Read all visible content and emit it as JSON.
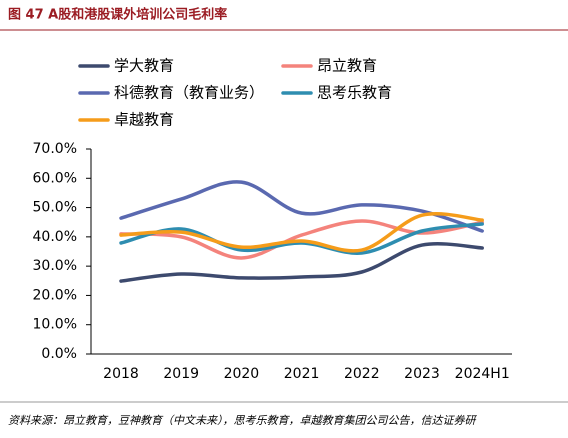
{
  "chart_data": {
    "type": "line",
    "title": "图 47  A股和港股课外培训公司毛利率",
    "source": "资料来源：昂立教育，豆神教育（中文未来），思考乐教育，卓越教育集团公司公告，信达证券研",
    "categories": [
      "2018",
      "2019",
      "2020",
      "2021",
      "2022",
      "2023",
      "2024H1"
    ],
    "series": [
      {
        "name": "学大教育",
        "color": "#3d4a6e",
        "values": [
          24.9,
          27.3,
          26.0,
          26.3,
          28.0,
          37.2,
          36.2
        ]
      },
      {
        "name": "昂立教育",
        "color": "#f4837c",
        "values": [
          41.0,
          40.0,
          32.8,
          40.6,
          45.4,
          41.3,
          45.0
        ]
      },
      {
        "name": "科德教育（教育业务）",
        "color": "#5a69b0",
        "values": [
          46.4,
          52.9,
          58.7,
          48.1,
          50.9,
          48.8,
          42.0
        ]
      },
      {
        "name": "思考乐教育",
        "color": "#2e8db0",
        "values": [
          37.9,
          42.7,
          35.5,
          37.9,
          34.5,
          42.0,
          44.4
        ]
      },
      {
        "name": "卓越教育",
        "color": "#f59c1a",
        "values": [
          40.6,
          41.6,
          36.5,
          38.6,
          35.5,
          47.4,
          45.7
        ]
      }
    ],
    "ylim": [
      0,
      70
    ],
    "yticks": [
      {
        "value": 0,
        "label": "0.0%"
      },
      {
        "value": 10,
        "label": "10.0%"
      },
      {
        "value": 20,
        "label": "20.0%"
      },
      {
        "value": 30,
        "label": "30.0%"
      },
      {
        "value": 40,
        "label": "40.0%"
      },
      {
        "value": 50,
        "label": "50.0%"
      },
      {
        "value": 60,
        "label": "60.0%"
      },
      {
        "value": 70,
        "label": "70.0%"
      }
    ]
  }
}
